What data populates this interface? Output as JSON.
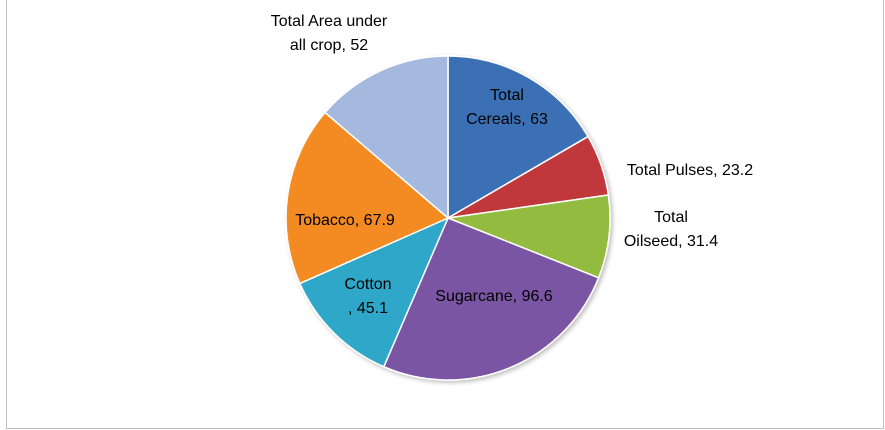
{
  "chart_data": {
    "type": "pie",
    "title": "",
    "categories": [
      "Total Cereals",
      "Total Pulses",
      "Total Oilseed",
      "Sugarcane",
      "Cotton",
      "Tobacco",
      "Total Area under all crop"
    ],
    "values": [
      63,
      23.2,
      31.4,
      96.6,
      45.1,
      67.9,
      52
    ],
    "labels": [
      [
        "Total",
        "Cereals, 63"
      ],
      [
        "Total Pulses, 23.2"
      ],
      [
        "Total",
        "Oilseed, 31.4"
      ],
      [
        "Sugarcane, 96.6"
      ],
      [
        "Cotton",
        ", 45.1"
      ],
      [
        "Tobacco, 67.9"
      ],
      [
        "Total Area under",
        "all crop, 52"
      ]
    ],
    "colors": [
      "#3b6fb5",
      "#c0383a",
      "#93bb3f",
      "#7a55a3",
      "#2fa7c9",
      "#f38a24",
      "#a5b9de"
    ],
    "legend": "none",
    "start_angle_deg": 0,
    "direction": "clockwise"
  }
}
